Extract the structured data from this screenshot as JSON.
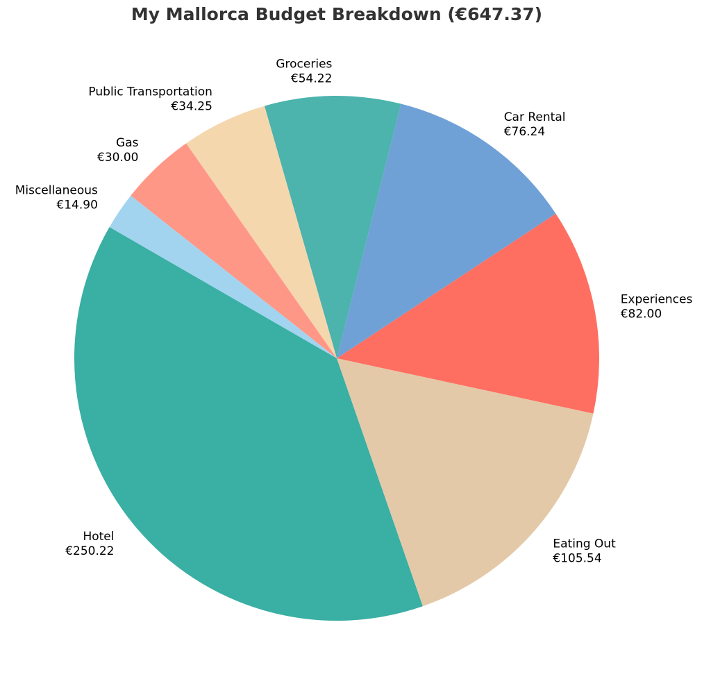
{
  "chart_data": {
    "type": "pie",
    "title": "My Mallorca Budget Breakdown (€647.37)",
    "start_angle_deg": 150,
    "direction": "counterclockwise",
    "slices": [
      {
        "label": "Hotel",
        "value": 250.22,
        "value_label": "€250.22",
        "color": "#3AAFA3"
      },
      {
        "label": "Eating Out",
        "value": 105.54,
        "value_label": "€105.54",
        "color": "#E4C9A8"
      },
      {
        "label": "Experiences",
        "value": 82.0,
        "value_label": "€82.00",
        "color": "#FF6F61"
      },
      {
        "label": "Car Rental",
        "value": 76.24,
        "value_label": "€76.24",
        "color": "#6FA1D6"
      },
      {
        "label": "Groceries",
        "value": 54.22,
        "value_label": "€54.22",
        "color": "#4CB3AD"
      },
      {
        "label": "Public Transportation",
        "value": 34.25,
        "value_label": "€34.25",
        "color": "#F5D7AE"
      },
      {
        "label": "Gas",
        "value": 30.0,
        "value_label": "€30.00",
        "color": "#FF9787"
      },
      {
        "label": "Miscellaneous",
        "value": 14.9,
        "value_label": "€14.90",
        "color": "#A2D4F0"
      }
    ]
  }
}
